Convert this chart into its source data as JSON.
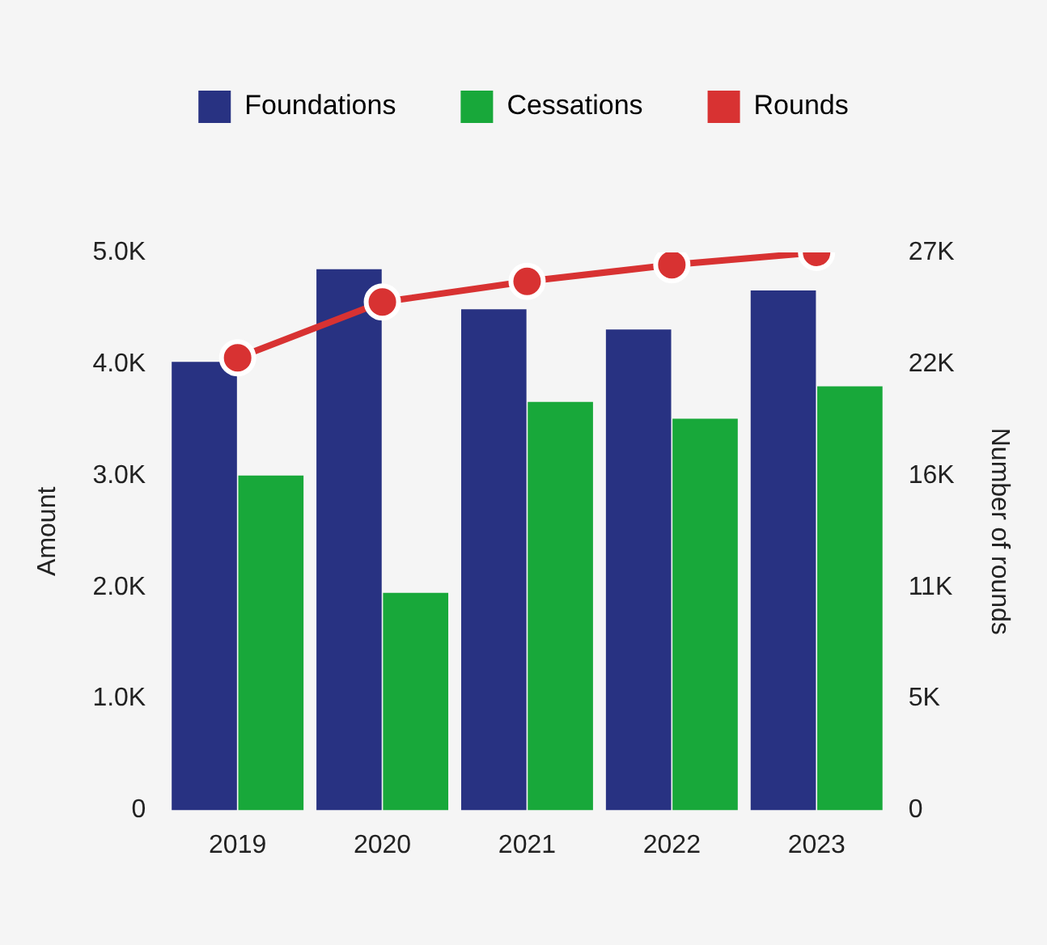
{
  "chart_data": {
    "type": "bar",
    "categories": [
      "2019",
      "2020",
      "2021",
      "2022",
      "2023"
    ],
    "ylabel": "Amount",
    "y2label": "Number of rounds",
    "ylim": [
      0,
      5000
    ],
    "yticks": [
      0,
      {
        "value": 1000,
        "label": "1.0K"
      },
      {
        "value": 2000,
        "label": "2.0K"
      },
      {
        "value": 3000,
        "label": "3.0K"
      },
      {
        "value": 4000,
        "label": "4.0K"
      },
      {
        "value": 5000,
        "label": "5.0K"
      }
    ],
    "y2lim": [
      0,
      27000
    ],
    "y2ticks": [
      0,
      {
        "value": 5400,
        "label": "5K"
      },
      {
        "value": 10800,
        "label": "11K"
      },
      {
        "value": 16200,
        "label": "16K"
      },
      {
        "value": 21600,
        "label": "22K"
      },
      {
        "value": 27000,
        "label": "27K"
      }
    ],
    "series": [
      {
        "name": "Foundations",
        "color": "#283282",
        "values": [
          4020,
          4850,
          4490,
          4310,
          4660
        ]
      },
      {
        "name": "Cessations",
        "color": "#18a83a",
        "values": [
          3000,
          1950,
          3660,
          3510,
          3800
        ]
      },
      {
        "name": "Rounds",
        "color": "#d83232",
        "type": "line",
        "axis": "y2",
        "values": [
          21900,
          24600,
          25600,
          26400,
          27000
        ]
      }
    ],
    "legend": "top",
    "grid": false,
    "marker": "circle",
    "line_style": "solid"
  }
}
